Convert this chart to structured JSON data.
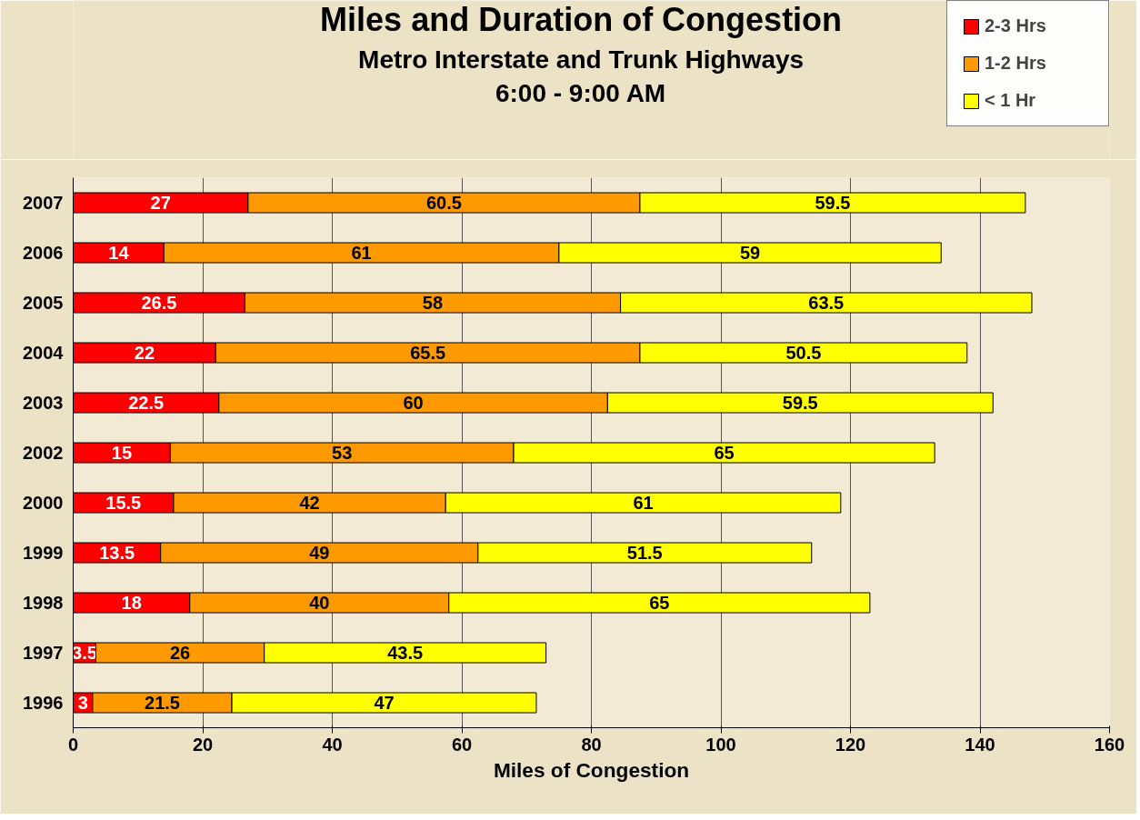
{
  "chart_data": {
    "type": "bar",
    "orientation": "horizontal",
    "stacked": true,
    "title": "Miles and Duration of Congestion",
    "subtitle": "Metro Interstate and Trunk Highways\n6:00 - 9:00 AM",
    "xlabel": "Miles of Congestion",
    "categories": [
      "2007",
      "2006",
      "2005",
      "2004",
      "2003",
      "2002",
      "2000",
      "1999",
      "1998",
      "1997",
      "1996"
    ],
    "series": [
      {
        "name": "2-3 Hrs",
        "color": "#ff0000",
        "values": [
          27,
          14,
          26.5,
          22,
          22.5,
          15,
          15.5,
          13.5,
          18,
          3.5,
          3
        ]
      },
      {
        "name": "1-2 Hrs",
        "color": "#ff9900",
        "values": [
          60.5,
          61,
          58,
          65.5,
          60,
          53,
          42,
          49,
          40,
          26,
          21.5
        ]
      },
      {
        "name": "< 1 Hr",
        "color": "#ffff00",
        "values": [
          59.5,
          59,
          63.5,
          50.5,
          59.5,
          65,
          61,
          51.5,
          65,
          43.5,
          47
        ]
      }
    ],
    "xlim": [
      0,
      160
    ],
    "xticks": [
      0,
      20,
      40,
      60,
      80,
      100,
      120,
      140,
      160
    ],
    "grid": "x",
    "legend": "top right",
    "data_labels": true
  }
}
